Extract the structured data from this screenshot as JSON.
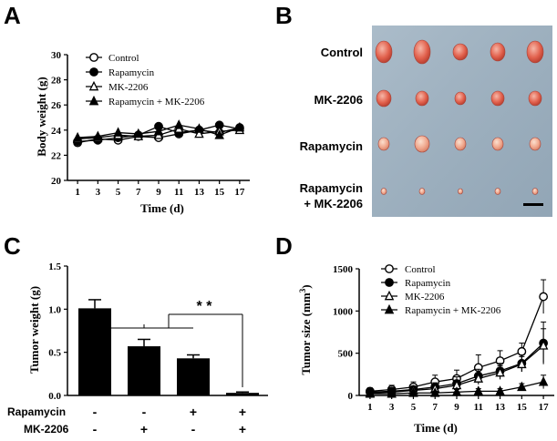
{
  "chart_data": [
    {
      "panel": "A",
      "type": "line",
      "xlabel": "Time (d)",
      "ylabel": "Body weight (g)",
      "ylim": [
        20,
        30
      ],
      "yticks": [
        "20",
        "22",
        "24",
        "26",
        "28",
        "30"
      ],
      "x": [
        1,
        3,
        5,
        7,
        9,
        11,
        13,
        15,
        17
      ],
      "xticks": [
        "1",
        "3",
        "5",
        "7",
        "9",
        "11",
        "13",
        "15",
        "17"
      ],
      "series": [
        {
          "name": "Control",
          "marker": "circle-open",
          "values": [
            23.0,
            23.3,
            23.2,
            23.5,
            23.4,
            23.7,
            24.0,
            23.8,
            24.2
          ]
        },
        {
          "name": "Rapamycin",
          "marker": "circle-filled",
          "values": [
            23.1,
            23.2,
            23.4,
            23.6,
            24.3,
            23.8,
            24.0,
            24.4,
            24.1
          ]
        },
        {
          "name": "MK-2206",
          "marker": "triangle-open",
          "values": [
            23.3,
            23.4,
            23.6,
            23.5,
            23.6,
            24.1,
            23.7,
            23.9,
            24.0
          ]
        },
        {
          "name": "Rapamycin + MK-2206",
          "marker": "triangle-filled",
          "values": [
            23.4,
            23.5,
            23.8,
            23.7,
            23.9,
            24.4,
            24.1,
            23.6,
            24.2
          ]
        }
      ]
    },
    {
      "panel": "C",
      "type": "bar",
      "ylabel": "Tumor weight (g)",
      "ylim": [
        0,
        1.5
      ],
      "yticks": [
        "0.0",
        "0.5",
        "1.0",
        "1.5"
      ],
      "values": [
        1.01,
        0.57,
        0.43,
        0.03
      ],
      "errors": [
        0.1,
        0.08,
        0.04,
        0.01
      ],
      "significance": "* *",
      "conditions": {
        "row_labels": [
          "Rapamycin",
          "MK-2206"
        ],
        "rapamycin": [
          "-",
          "-",
          "+",
          "+"
        ],
        "mk2206": [
          "-",
          "+",
          "-",
          "+"
        ]
      }
    },
    {
      "panel": "D",
      "type": "line",
      "xlabel": "Time (d)",
      "ylabel": "Tumor size (mm",
      "ylabel_superscript": "3",
      "ylabel_close": ")",
      "ylim": [
        0,
        1500
      ],
      "yticks": [
        "0",
        "500",
        "1000",
        "1500"
      ],
      "x": [
        1,
        3,
        5,
        7,
        9,
        11,
        13,
        15,
        17
      ],
      "xticks": [
        "1",
        "3",
        "5",
        "7",
        "9",
        "11",
        "13",
        "15",
        "17"
      ],
      "series": [
        {
          "name": "Control",
          "marker": "circle-open",
          "values": [
            50,
            70,
            100,
            160,
            200,
            330,
            410,
            520,
            1170
          ],
          "errors": [
            40,
            50,
            60,
            80,
            100,
            150,
            120,
            100,
            200
          ]
        },
        {
          "name": "Rapamycin",
          "marker": "circle-filled",
          "values": [
            40,
            50,
            70,
            100,
            140,
            230,
            290,
            380,
            620
          ],
          "errors": [
            30,
            40,
            40,
            50,
            80,
            80,
            90,
            100,
            250
          ]
        },
        {
          "name": "MK-2206",
          "marker": "triangle-open",
          "values": [
            30,
            40,
            60,
            80,
            120,
            200,
            270,
            370,
            590
          ],
          "errors": [
            20,
            30,
            30,
            40,
            60,
            70,
            80,
            90,
            200
          ]
        },
        {
          "name": "Rapamycin + MK-2206",
          "marker": "triangle-filled",
          "values": [
            20,
            20,
            30,
            30,
            40,
            50,
            50,
            100,
            160
          ],
          "errors": [
            15,
            15,
            20,
            20,
            30,
            30,
            30,
            40,
            80
          ]
        }
      ]
    }
  ],
  "panel_b": {
    "rows": [
      "Control",
      "MK-2206",
      "Rapamycin",
      "Rapamycin",
      "+ MK-2206"
    ]
  },
  "panels": {
    "a": "A",
    "b": "B",
    "c": "C",
    "d": "D"
  }
}
